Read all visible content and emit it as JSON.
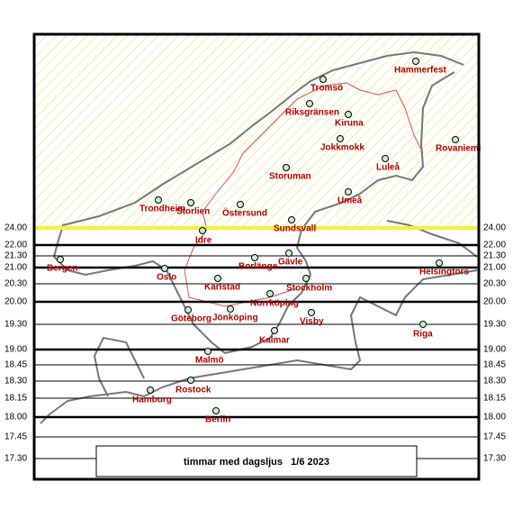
{
  "caption": "timmar med dagsljus   1/6 2023",
  "hour_lines": [
    "24.00",
    "22.00",
    "21.30",
    "21.00",
    "20.30",
    "20.00",
    "19.30",
    "19.00",
    "18.45",
    "18.30",
    "18.15",
    "18.00",
    "17.45",
    "17.30"
  ],
  "cities": [
    "Hammerfest",
    "Tromsö",
    "Riksgränsen",
    "Kiruna",
    "Jokkmokk",
    "Rovaniemi",
    "Luleå",
    "Storuman",
    "Umeå",
    "Trondheim",
    "Storlien",
    "Östersund",
    "Sundsvall",
    "Idre",
    "Bergen",
    "Gävle",
    "Borlänge",
    "Helsingfors",
    "Oslo",
    "Karlstad",
    "Stockholm",
    "Norrköping",
    "Göteborg",
    "Jönköping",
    "Visby",
    "Riga",
    "Kalmar",
    "Malmö",
    "Rostock",
    "Hamburg",
    "Berlin"
  ]
}
